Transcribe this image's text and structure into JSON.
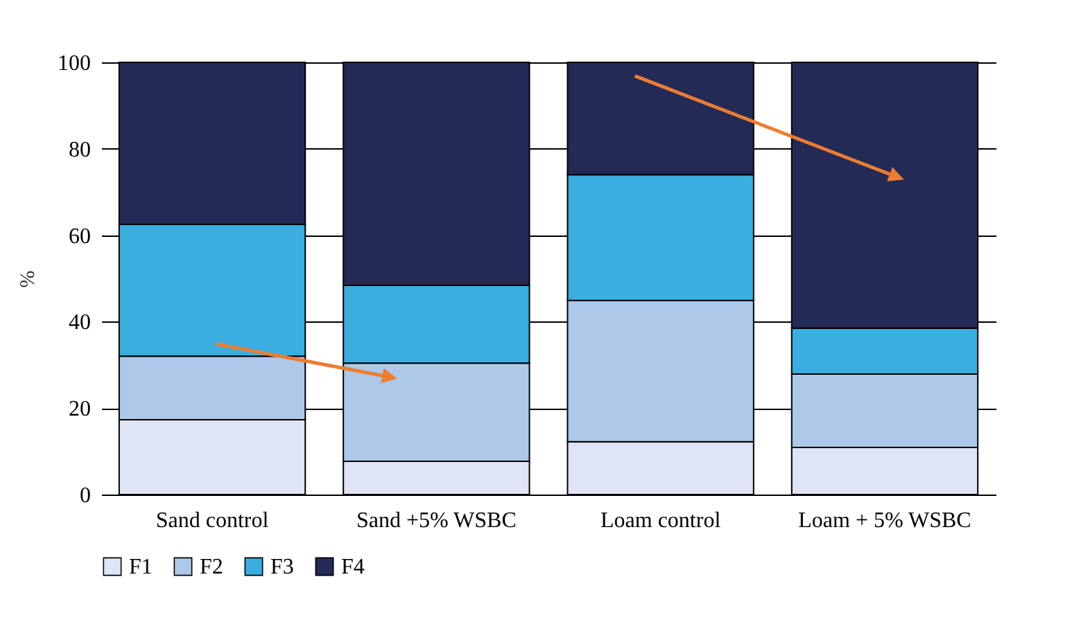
{
  "chart_data": {
    "type": "bar",
    "stacked": true,
    "ylabel": "%",
    "categories": [
      "Sand control",
      "Sand +5% WSBC",
      "Loam control",
      "Loam + 5% WSBC"
    ],
    "series": [
      {
        "name": "F1",
        "color": "#dfe5f5",
        "values": [
          17.3,
          7.7,
          12.2,
          10.9
        ]
      },
      {
        "name": "F2",
        "color": "#adc8e8",
        "values": [
          14.7,
          22.7,
          32.7,
          17
        ]
      },
      {
        "name": "F3",
        "color": "#3aaee0",
        "values": [
          30.5,
          18,
          29.1,
          10.6
        ]
      },
      {
        "name": "F4",
        "color": "#232a56",
        "values": [
          37.5,
          51.6,
          26,
          61.5
        ]
      }
    ],
    "ylim": [
      0,
      100
    ],
    "yticks": [
      0,
      20,
      40,
      60,
      80,
      100
    ],
    "grid": "y",
    "legend": "bottom"
  }
}
